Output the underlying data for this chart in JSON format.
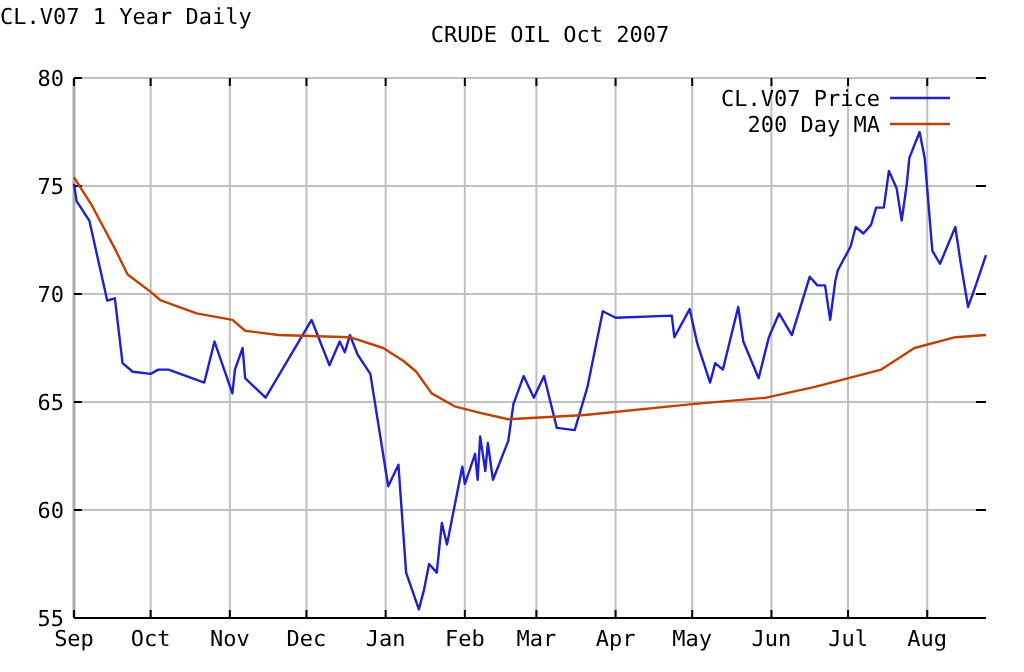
{
  "chart_data": {
    "type": "line",
    "title": "CRUDE OIL Oct 2007",
    "subtitle": "CL.V07 1 Year Daily",
    "xlim": [
      "2006-09-01",
      "2007-08-24"
    ],
    "xticks": [
      {
        "value": "2006-09-01",
        "label": "Sep"
      },
      {
        "value": "2006-10-01",
        "label": "Oct"
      },
      {
        "value": "2006-11-01",
        "label": "Nov"
      },
      {
        "value": "2006-12-01",
        "label": "Dec"
      },
      {
        "value": "2007-01-01",
        "label": "Jan"
      },
      {
        "value": "2007-02-01",
        "label": "Feb"
      },
      {
        "value": "2007-03-01",
        "label": "Mar"
      },
      {
        "value": "2007-04-01",
        "label": "Apr"
      },
      {
        "value": "2007-05-01",
        "label": "May"
      },
      {
        "value": "2007-06-01",
        "label": "Jun"
      },
      {
        "value": "2007-07-01",
        "label": "Jul"
      },
      {
        "value": "2007-08-01",
        "label": "Aug"
      }
    ],
    "ylim": [
      55,
      80
    ],
    "yticks": [
      55,
      60,
      65,
      70,
      75,
      80
    ],
    "grid": true,
    "legend": "top right",
    "series": [
      {
        "name": "CL.V07 Price",
        "color": "#2020cc",
        "x": [
          "2006-09-01",
          "2006-09-02",
          "2006-09-07",
          "2006-09-14",
          "2006-09-17",
          "2006-09-20",
          "2006-09-24",
          "2006-10-01",
          "2006-10-04",
          "2006-10-08",
          "2006-10-22",
          "2006-10-26",
          "2006-11-02",
          "2006-11-03",
          "2006-11-06",
          "2006-11-07",
          "2006-11-15",
          "2006-12-03",
          "2006-12-10",
          "2006-12-14",
          "2006-12-16",
          "2006-12-18",
          "2006-12-21",
          "2006-12-26",
          "2007-01-02",
          "2007-01-06",
          "2007-01-09",
          "2007-01-14",
          "2007-01-16",
          "2007-01-18",
          "2007-01-21",
          "2007-01-23",
          "2007-01-25",
          "2007-01-31",
          "2007-02-01",
          "2007-02-05",
          "2007-02-06",
          "2007-02-07",
          "2007-02-09",
          "2007-02-10",
          "2007-02-12",
          "2007-02-18",
          "2007-02-20",
          "2007-02-24",
          "2007-02-28",
          "2007-03-04",
          "2007-03-09",
          "2007-03-16",
          "2007-03-21",
          "2007-03-27",
          "2007-04-01",
          "2007-04-23",
          "2007-04-24",
          "2007-04-30",
          "2007-05-03",
          "2007-05-08",
          "2007-05-10",
          "2007-05-13",
          "2007-05-19",
          "2007-05-21",
          "2007-05-27",
          "2007-05-31",
          "2007-06-04",
          "2007-06-09",
          "2007-06-16",
          "2007-06-19",
          "2007-06-22",
          "2007-06-24",
          "2007-06-26",
          "2007-06-27",
          "2007-07-02",
          "2007-07-04",
          "2007-07-07",
          "2007-07-10",
          "2007-07-12",
          "2007-07-15",
          "2007-07-17",
          "2007-07-20",
          "2007-07-22",
          "2007-07-24",
          "2007-07-25",
          "2007-07-29",
          "2007-07-31",
          "2007-08-03",
          "2007-08-06",
          "2007-08-12",
          "2007-08-14",
          "2007-08-17",
          "2007-08-20",
          "2007-08-24"
        ],
        "values": [
          75.1,
          74.3,
          73.4,
          69.7,
          69.8,
          66.8,
          66.4,
          66.3,
          66.5,
          66.5,
          65.9,
          67.8,
          65.4,
          66.5,
          67.5,
          66.1,
          65.2,
          68.8,
          66.7,
          67.8,
          67.3,
          68.1,
          67.2,
          66.3,
          61.1,
          62.1,
          57.1,
          55.4,
          56.3,
          57.5,
          57.1,
          59.4,
          58.4,
          62.0,
          61.2,
          62.6,
          61.4,
          63.4,
          61.8,
          63.1,
          61.4,
          63.2,
          64.9,
          66.2,
          65.2,
          66.2,
          63.8,
          63.7,
          65.7,
          69.2,
          68.9,
          69.0,
          68.0,
          69.3,
          67.7,
          65.9,
          66.8,
          66.5,
          69.4,
          67.8,
          66.1,
          68.0,
          69.1,
          68.1,
          70.8,
          70.4,
          70.4,
          68.8,
          70.6,
          71.1,
          72.2,
          73.1,
          72.8,
          73.2,
          74.0,
          74.0,
          75.7,
          74.9,
          73.4,
          75.1,
          76.3,
          77.5,
          76.3,
          72.0,
          71.4,
          73.1,
          71.5,
          69.4,
          70.4,
          71.8
        ]
      },
      {
        "name": "200 Day MA",
        "color": "#c04000",
        "x": [
          "2006-09-01",
          "2006-09-08",
          "2006-09-17",
          "2006-09-22",
          "2006-10-01",
          "2006-10-05",
          "2006-10-19",
          "2006-11-02",
          "2006-11-07",
          "2006-11-20",
          "2006-12-18",
          "2006-12-31",
          "2007-01-08",
          "2007-01-13",
          "2007-01-19",
          "2007-01-28",
          "2007-02-07",
          "2007-02-18",
          "2007-03-20",
          "2007-05-01",
          "2007-05-30",
          "2007-06-18",
          "2007-07-14",
          "2007-07-27",
          "2007-08-12",
          "2007-08-24"
        ],
        "values": [
          75.4,
          74.1,
          72.1,
          70.9,
          70.1,
          69.7,
          69.1,
          68.8,
          68.3,
          68.1,
          68.0,
          67.5,
          66.9,
          66.4,
          65.4,
          64.8,
          64.5,
          64.2,
          64.4,
          64.9,
          65.2,
          65.7,
          66.5,
          67.5,
          68.0,
          68.1
        ]
      }
    ]
  }
}
